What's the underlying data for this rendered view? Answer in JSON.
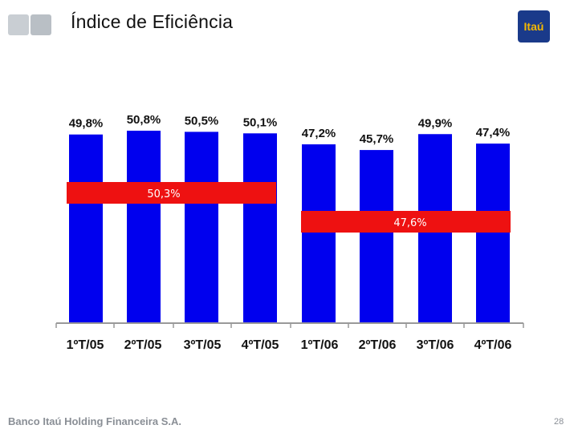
{
  "slide": {
    "title": "Índice de Eficiência",
    "logo_text": "Itaú",
    "footer_company": "Banco Itaú Holding Financeira S.A.",
    "page_number": "28"
  },
  "colors": {
    "bar": "#0000ee",
    "band": "#ee1111",
    "axis": "#999999"
  },
  "chart_data": {
    "type": "bar",
    "title": "",
    "xlabel": "",
    "ylabel": "",
    "categories": [
      "1ºT/05",
      "2ºT/05",
      "3ºT/05",
      "4ºT/05",
      "1ºT/06",
      "2ºT/06",
      "3ºT/06",
      "4ºT/06"
    ],
    "values": [
      49.8,
      50.8,
      50.5,
      50.1,
      47.2,
      45.7,
      49.9,
      47.4
    ],
    "value_labels": [
      "49,8%",
      "50,8%",
      "50,5%",
      "50,1%",
      "47,2%",
      "45,7%",
      "49,9%",
      "47,4%"
    ],
    "ylim": [
      0,
      50.8
    ],
    "grid": false,
    "annotations": [
      {
        "text": "50,3%",
        "from_category": 0,
        "to_category": 3
      },
      {
        "text": "47,6%",
        "from_category": 4,
        "to_category": 7
      }
    ]
  }
}
